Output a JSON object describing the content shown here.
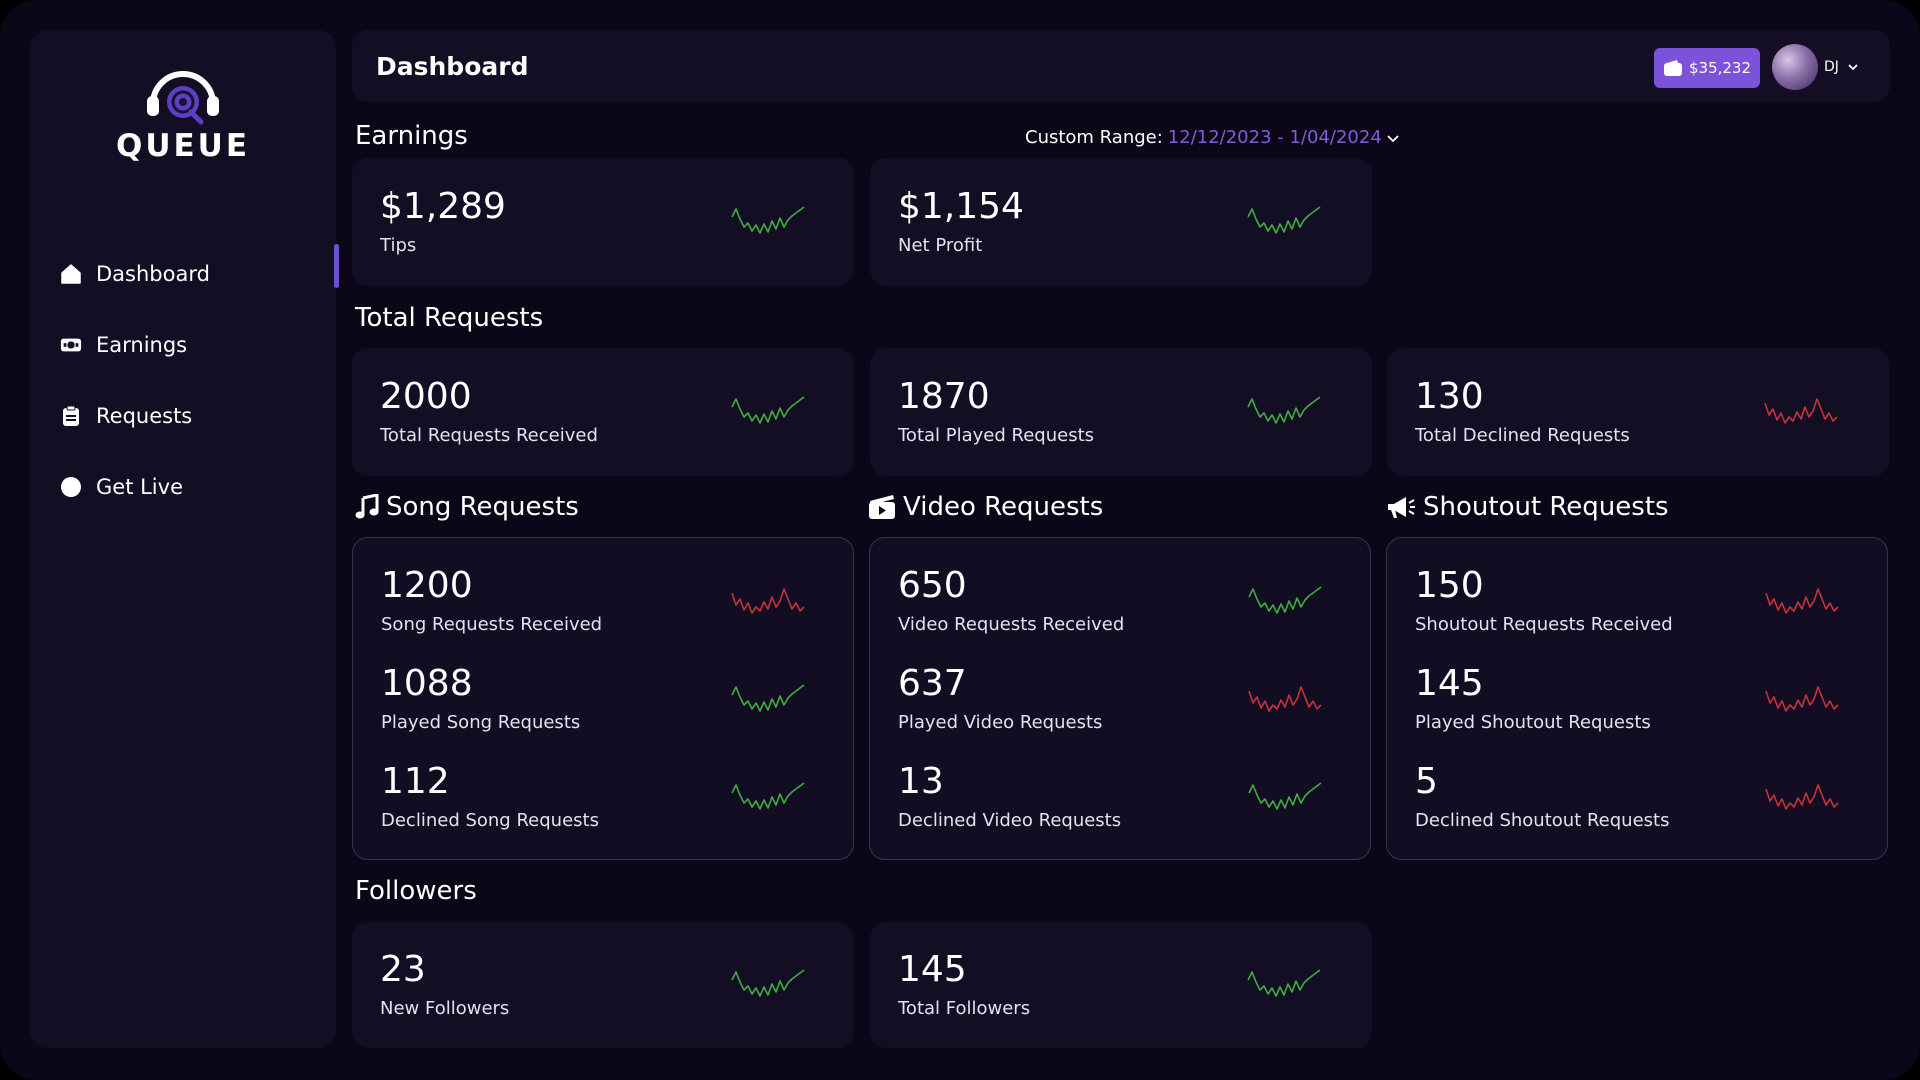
{
  "app": {
    "logo_text": "QUEUE"
  },
  "sidebar": {
    "items": [
      {
        "label": "Dashboard",
        "icon": "home-icon",
        "active": true
      },
      {
        "label": "Earnings",
        "icon": "money-icon",
        "active": false
      },
      {
        "label": "Requests",
        "icon": "clipboard-icon",
        "active": false
      },
      {
        "label": "Get Live",
        "icon": "live-dot-icon",
        "active": false
      }
    ]
  },
  "header": {
    "title": "Dashboard",
    "wallet_balance": "$35,232",
    "profile_name": "DJ"
  },
  "colors": {
    "accent": "#7b52d9",
    "range_value": "#7b5fd6",
    "trend_up": "#3fae3f",
    "trend_down": "#c8323a"
  },
  "earnings": {
    "title": "Earnings",
    "range_label": "Custom Range:",
    "range_value": "12/12/2023 - 1/04/2024",
    "cards": [
      {
        "value": "$1,289",
        "label": "Tips",
        "trend": "up"
      },
      {
        "value": "$1,154",
        "label": "Net Profit",
        "trend": "up"
      }
    ]
  },
  "total_requests": {
    "title": "Total Requests",
    "cards": [
      {
        "value": "2000",
        "label": "Total Requests Received",
        "trend": "up"
      },
      {
        "value": "1870",
        "label": "Total Played Requests",
        "trend": "up"
      },
      {
        "value": "130",
        "label": "Total Declined Requests",
        "trend": "down"
      }
    ]
  },
  "song_requests": {
    "title": "Song Requests",
    "icon": "music-note-icon",
    "stats": [
      {
        "value": "1200",
        "label": "Song Requests Received",
        "trend": "down"
      },
      {
        "value": "1088",
        "label": "Played Song Requests",
        "trend": "up"
      },
      {
        "value": "112",
        "label": "Declined Song Requests",
        "trend": "up"
      }
    ]
  },
  "video_requests": {
    "title": "Video Requests",
    "icon": "video-clapper-icon",
    "stats": [
      {
        "value": "650",
        "label": "Video Requests Received",
        "trend": "up"
      },
      {
        "value": "637",
        "label": "Played Video Requests",
        "trend": "down"
      },
      {
        "value": "13",
        "label": "Declined Video Requests",
        "trend": "up"
      }
    ]
  },
  "shoutout_requests": {
    "title": "Shoutout Requests",
    "icon": "megaphone-icon",
    "stats": [
      {
        "value": "150",
        "label": "Shoutout Requests Received",
        "trend": "down"
      },
      {
        "value": "145",
        "label": "Played Shoutout Requests",
        "trend": "down"
      },
      {
        "value": "5",
        "label": "Declined Shoutout Requests",
        "trend": "down"
      }
    ]
  },
  "followers": {
    "title": "Followers",
    "cards": [
      {
        "value": "23",
        "label": "New Followers",
        "trend": "up"
      },
      {
        "value": "145",
        "label": "Total Followers",
        "trend": "up"
      }
    ]
  }
}
